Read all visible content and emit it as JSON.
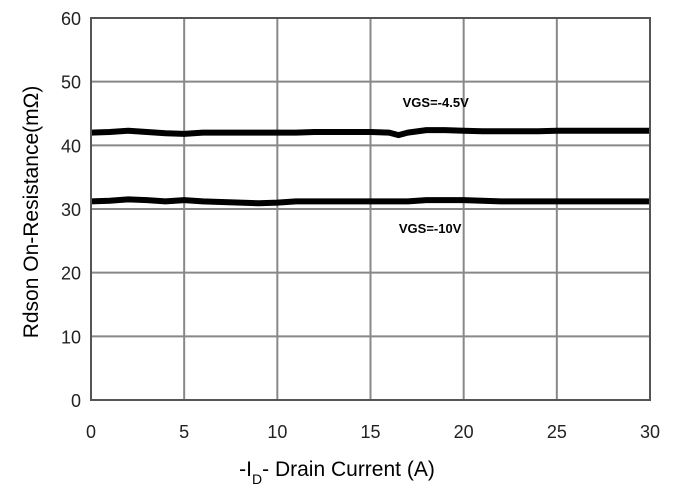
{
  "chart_data": {
    "type": "line",
    "title": "",
    "xlabel": {
      "prefix": "-I",
      "subscript": "D",
      "suffix": "- Drain Current (A)"
    },
    "ylabel": "Rdson On-Resistance(mΩ)",
    "xlim": [
      0,
      30
    ],
    "ylim": [
      0,
      60
    ],
    "x_ticks": [
      "0",
      "5",
      "10",
      "15",
      "20",
      "25",
      "30"
    ],
    "y_ticks": [
      "0",
      "10",
      "20",
      "30",
      "40",
      "50",
      "60"
    ],
    "grid": true,
    "series": [
      {
        "name": "VGS=-4.5V",
        "x": [
          0,
          1,
          2,
          3,
          4,
          5,
          6,
          7,
          8,
          9,
          10,
          11,
          12,
          13,
          14,
          15,
          16,
          16.5,
          17,
          18,
          19,
          20,
          21,
          22,
          23,
          24,
          25,
          26,
          27,
          28,
          29,
          30
        ],
        "y": [
          42.0,
          42.1,
          42.3,
          42.1,
          41.9,
          41.8,
          42.0,
          42.0,
          42.0,
          42.0,
          42.0,
          42.0,
          42.1,
          42.1,
          42.1,
          42.1,
          42.0,
          41.6,
          42.0,
          42.4,
          42.4,
          42.3,
          42.2,
          42.2,
          42.2,
          42.2,
          42.3,
          42.3,
          42.3,
          42.3,
          42.3,
          42.3
        ]
      },
      {
        "name": "VGS=-10V",
        "x": [
          0,
          1,
          2,
          3,
          4,
          5,
          6,
          7,
          8,
          9,
          10,
          11,
          12,
          13,
          14,
          15,
          16,
          17,
          18,
          19,
          20,
          21,
          22,
          23,
          24,
          25,
          26,
          27,
          28,
          29,
          30
        ],
        "y": [
          31.2,
          31.3,
          31.5,
          31.4,
          31.2,
          31.4,
          31.2,
          31.1,
          31.0,
          30.9,
          31.0,
          31.2,
          31.2,
          31.2,
          31.2,
          31.2,
          31.2,
          31.2,
          31.4,
          31.4,
          31.4,
          31.3,
          31.2,
          31.2,
          31.2,
          31.2,
          31.2,
          31.2,
          31.2,
          31.2,
          31.2
        ]
      }
    ],
    "annotations": [
      {
        "text": "VGS=-4.5V",
        "x": 18.5,
        "y": 46.0
      },
      {
        "text": "VGS=-10V",
        "x": 18.2,
        "y": 26.2
      }
    ],
    "colors": {
      "series": "#000000",
      "grid": "#888888",
      "frame": "#555555",
      "background": "#ffffff"
    }
  }
}
